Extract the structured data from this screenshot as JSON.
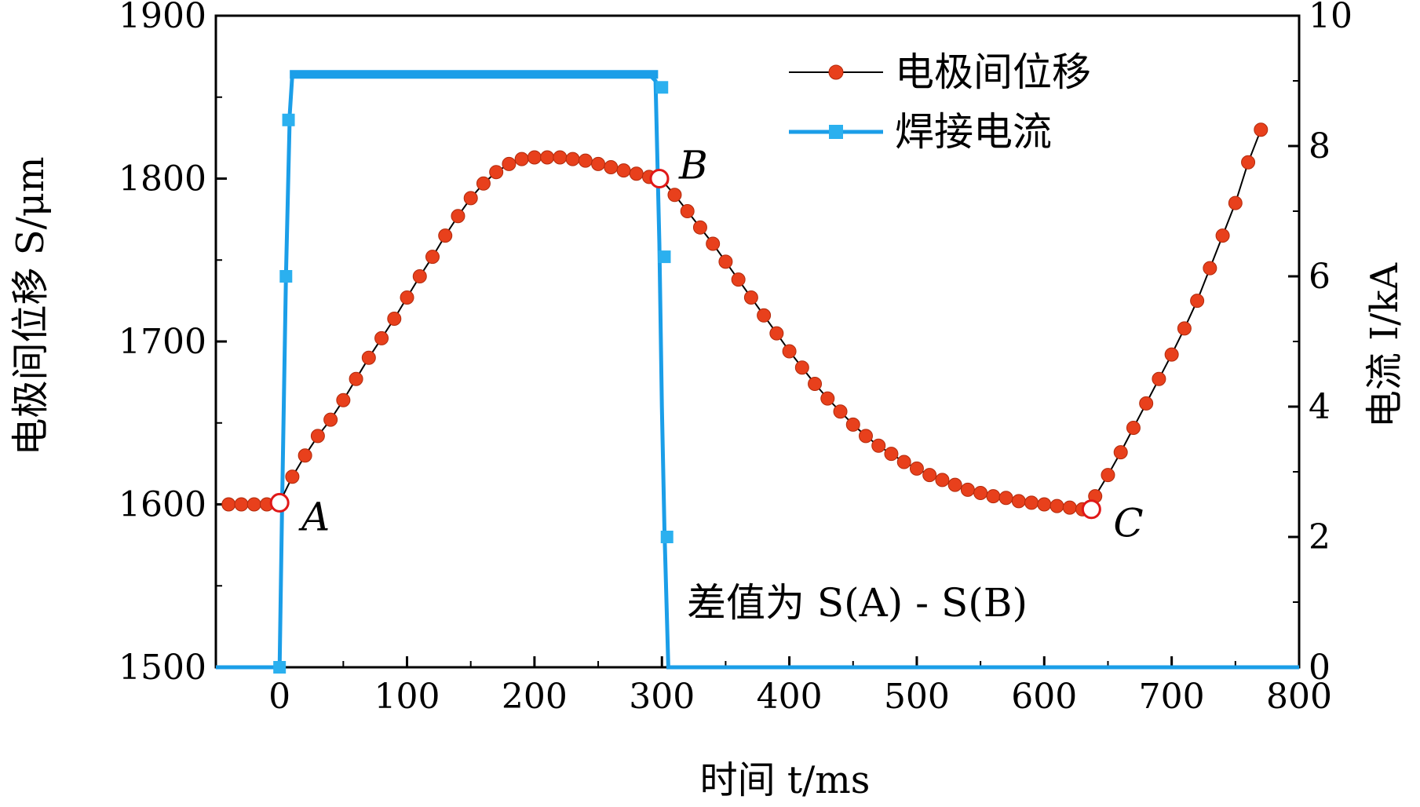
{
  "chart_data": {
    "type": "line",
    "title": "",
    "xlabel": "时间 t/ms",
    "ylabel": "电极间位移 S/μm",
    "y2label": "电流 I/kA",
    "xlim": [
      -50,
      800
    ],
    "ylim": [
      1500,
      1900
    ],
    "y2lim": [
      0,
      10
    ],
    "xticks": [
      0,
      100,
      200,
      300,
      400,
      500,
      600,
      700,
      800
    ],
    "yticks": [
      1500,
      1600,
      1700,
      1800,
      1900
    ],
    "y2ticks": [
      0,
      2,
      4,
      6,
      8,
      10
    ],
    "grid": false,
    "legend_position": "top-right",
    "series": [
      {
        "name": "电极间位移",
        "axis": "left",
        "color": "#e8401c",
        "marker": "circle",
        "x": [
          -40,
          -30,
          -20,
          -10,
          0,
          10,
          20,
          30,
          40,
          50,
          60,
          70,
          80,
          90,
          100,
          110,
          120,
          130,
          140,
          150,
          160,
          170,
          180,
          190,
          200,
          210,
          220,
          230,
          240,
          250,
          260,
          270,
          280,
          290,
          300,
          310,
          320,
          330,
          340,
          350,
          360,
          370,
          380,
          390,
          400,
          410,
          420,
          430,
          440,
          450,
          460,
          470,
          480,
          490,
          500,
          510,
          520,
          530,
          540,
          550,
          560,
          570,
          580,
          590,
          600,
          610,
          620,
          630,
          640,
          650,
          660,
          670,
          680,
          690,
          700,
          710,
          720,
          730,
          740,
          750,
          760,
          770
        ],
        "y": [
          1600,
          1600,
          1600,
          1600,
          1601,
          1617,
          1630,
          1642,
          1652,
          1664,
          1677,
          1690,
          1702,
          1714,
          1727,
          1740,
          1752,
          1765,
          1777,
          1788,
          1797,
          1804,
          1809,
          1812,
          1813,
          1813,
          1813,
          1812,
          1811,
          1809,
          1807,
          1805,
          1803,
          1801,
          1799,
          1790,
          1780,
          1770,
          1760,
          1749,
          1738,
          1727,
          1716,
          1705,
          1694,
          1684,
          1674,
          1665,
          1657,
          1649,
          1642,
          1636,
          1631,
          1626,
          1622,
          1618,
          1615,
          1612,
          1609,
          1607,
          1605,
          1604,
          1602,
          1601,
          1600,
          1599,
          1598,
          1597,
          1605,
          1618,
          1632,
          1647,
          1662,
          1677,
          1692,
          1708,
          1725,
          1745,
          1765,
          1785,
          1810,
          1830
        ]
      },
      {
        "name": "焊接电流",
        "axis": "right",
        "color": "#1b9ee8",
        "marker": "square",
        "x": [
          -50,
          0,
          2,
          5,
          8,
          10,
          20,
          50,
          100,
          150,
          200,
          250,
          290,
          295,
          298,
          300,
          302,
          305,
          800
        ],
        "y": [
          0,
          0,
          2.5,
          6.0,
          8.5,
          9.1,
          9.1,
          9.1,
          9.1,
          9.1,
          9.1,
          9.1,
          9.1,
          9.0,
          6.5,
          4.0,
          2.1,
          0,
          0
        ],
        "markers_x": [
          5,
          7,
          0,
          300,
          302,
          304
        ],
        "markers_y": [
          6.0,
          8.4,
          0,
          8.9,
          6.3,
          2.0
        ]
      }
    ],
    "highlight_points": [
      {
        "label": "A",
        "x": 0,
        "y": 1601
      },
      {
        "label": "B",
        "x": 298,
        "y": 1800
      },
      {
        "label": "C",
        "x": 637,
        "y": 1597
      }
    ],
    "annotation": "差值为 S(A) - S(B)"
  }
}
